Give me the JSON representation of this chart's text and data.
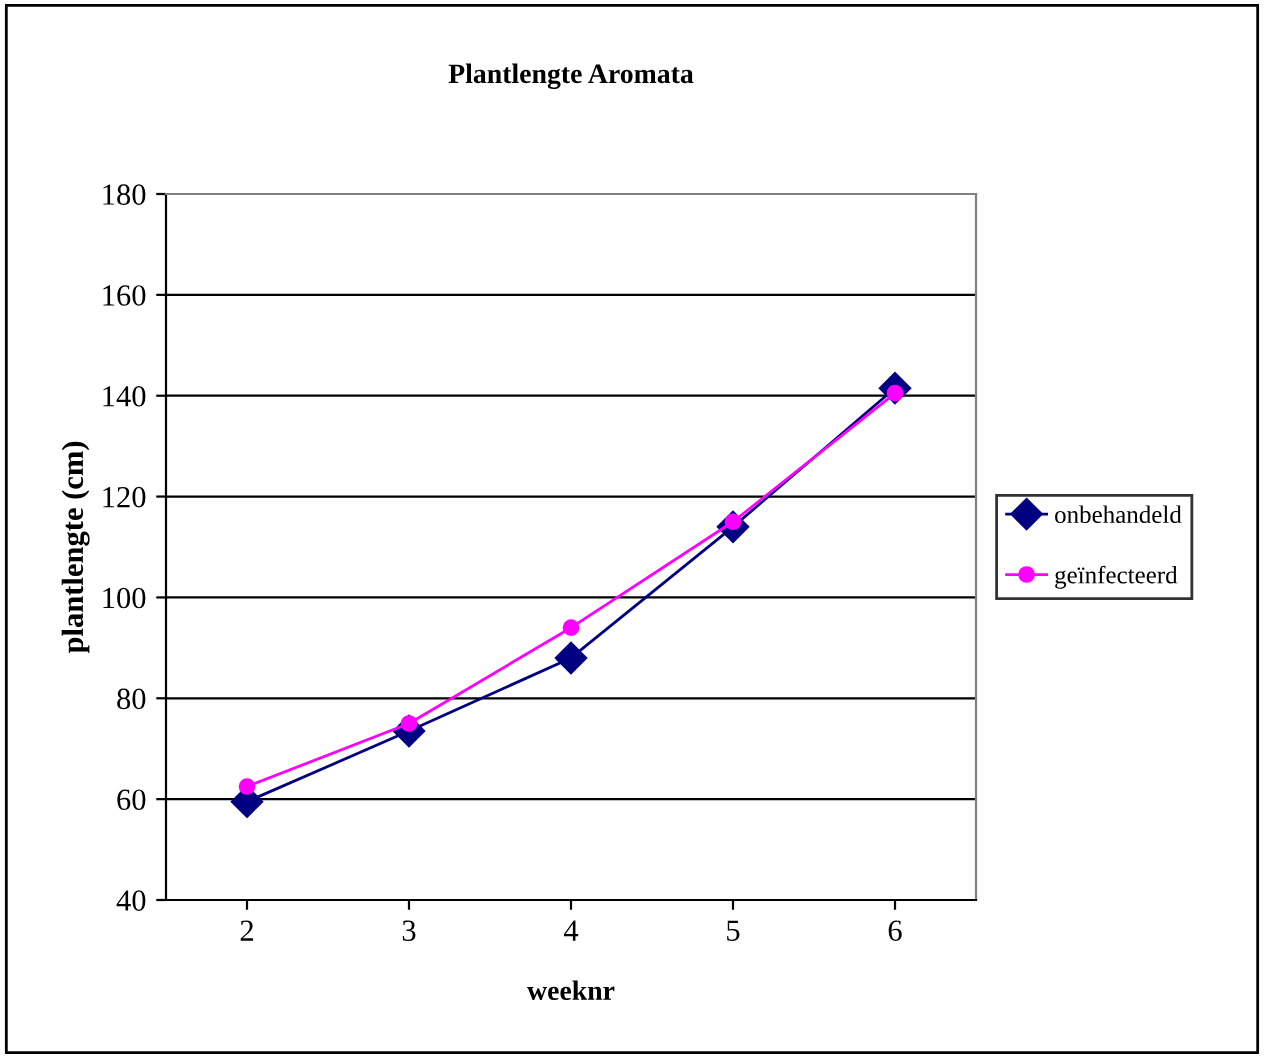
{
  "chart_data": {
    "type": "line",
    "title": "Plantlengte Aromata",
    "xlabel": "weeknr",
    "ylabel": "plantlengte (cm)",
    "categories": [
      "2",
      "3",
      "4",
      "5",
      "6"
    ],
    "series": [
      {
        "name": "onbehandeld",
        "color": "#000080",
        "marker": "diamond",
        "values": [
          59.5,
          73.5,
          88,
          114,
          141.5
        ]
      },
      {
        "name": "geïnfecteerd",
        "color": "#ff00ff",
        "marker": "circle",
        "values": [
          62.5,
          75,
          94,
          115,
          140.5
        ]
      }
    ],
    "ylim": [
      40,
      180
    ],
    "yticks": [
      40,
      60,
      80,
      100,
      120,
      140,
      160,
      180
    ],
    "grid": "y",
    "legend": "right",
    "line_style": "solid"
  }
}
